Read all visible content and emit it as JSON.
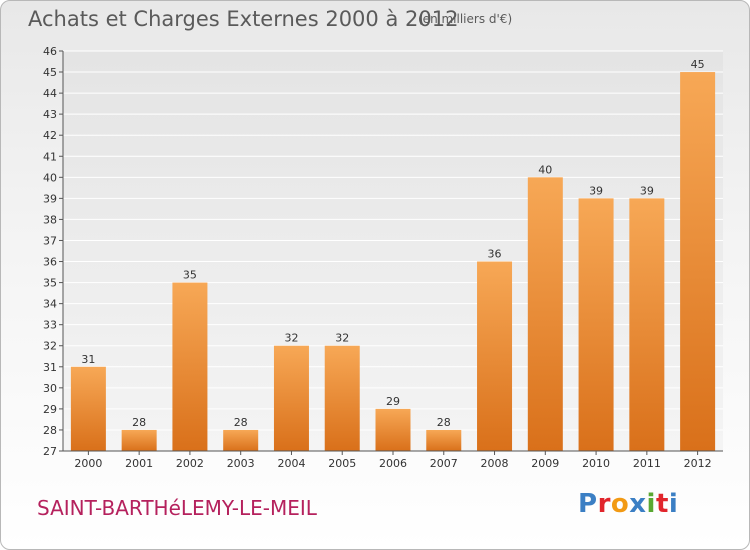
{
  "header": {
    "title": "Achats et Charges Externes 2000 à 2012",
    "subtitle": "(en milliers d'€)"
  },
  "footer": {
    "commune": "SAINT-BARTHéLEMY-LE-MEIL",
    "logo_letters": [
      "P",
      "r",
      "o",
      "x",
      "i",
      "t",
      "i"
    ],
    "logo_colors": [
      "#3b7fc4",
      "#e1252c",
      "#f29a14",
      "#3b7fc4",
      "#5aa832",
      "#e1252c",
      "#3b7fc4"
    ]
  },
  "chart_data": {
    "type": "bar",
    "title": "Achats et Charges Externes 2000 à 2012",
    "subtitle": "(en milliers d'€)",
    "xlabel": "",
    "ylabel": "",
    "categories": [
      "2000",
      "2001",
      "2002",
      "2003",
      "2004",
      "2005",
      "2006",
      "2007",
      "2008",
      "2009",
      "2010",
      "2011",
      "2012"
    ],
    "values": [
      31,
      28,
      35,
      28,
      32,
      32,
      29,
      28,
      36,
      40,
      39,
      39,
      45
    ],
    "ylim": [
      27,
      46
    ],
    "yticks": [
      27,
      28,
      29,
      30,
      31,
      32,
      33,
      34,
      35,
      36,
      37,
      38,
      39,
      40,
      41,
      42,
      43,
      44,
      45,
      46
    ],
    "grid": true,
    "bar_color_top": "#f7a856",
    "bar_color_bottom": "#d9701a"
  }
}
